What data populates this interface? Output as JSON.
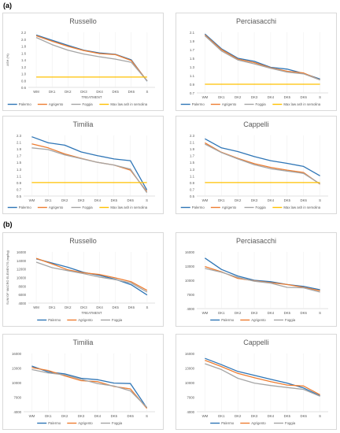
{
  "sections": [
    {
      "label": "(a)"
    },
    {
      "label": "(b)"
    }
  ],
  "colors": {
    "Palermo": "#2e75b6",
    "Agrigento": "#ed7d31",
    "Foggia": "#a5a5a5",
    "Max law ash in semolina": "#ffc000"
  },
  "chart_data": [
    {
      "type": "line",
      "title": "Russello",
      "xlabel": "TREATMENT",
      "ylabel": "ASH (%)",
      "categories": [
        "WM",
        "DK1",
        "DK2",
        "DK3",
        "DK4",
        "DK5",
        "DK6",
        "S"
      ],
      "yticks": [
        "0.6",
        "0.8",
        "1.0",
        "1.2",
        "1.4",
        "1.6",
        "1.8",
        "2.0",
        "2.2"
      ],
      "ylim": [
        0.6,
        2.2
      ],
      "series": [
        {
          "name": "Palermo",
          "values": [
            2.12,
            1.97,
            1.82,
            1.68,
            1.6,
            1.56,
            1.4,
            0.78
          ]
        },
        {
          "name": "Agrigento",
          "values": [
            2.1,
            1.94,
            1.79,
            1.67,
            1.58,
            1.55,
            1.38,
            0.79
          ]
        },
        {
          "name": "Foggia",
          "values": [
            2.05,
            1.84,
            1.68,
            1.57,
            1.49,
            1.42,
            1.33,
            0.79
          ]
        },
        {
          "name": "Max law ash in semolina",
          "values": [
            0.9,
            0.9,
            0.9,
            0.9,
            0.9,
            0.9,
            0.9,
            0.9
          ]
        }
      ],
      "legend": "bottom",
      "grid": false
    },
    {
      "type": "line",
      "title": "Perciasacchi",
      "xlabel": "",
      "ylabel": "",
      "categories": [
        "WM",
        "DK1",
        "DK2",
        "DK3",
        "DK4",
        "DK5",
        "DK6",
        "S"
      ],
      "yticks": [
        "0.7",
        "0.9",
        "1.1",
        "1.3",
        "1.5",
        "1.7",
        "1.9",
        "2.1"
      ],
      "ylim": [
        0.7,
        2.1
      ],
      "series": [
        {
          "name": "Palermo",
          "values": [
            2.06,
            1.72,
            1.5,
            1.43,
            1.29,
            1.25,
            1.15,
            1.02
          ]
        },
        {
          "name": "Agrigento",
          "values": [
            2.04,
            1.7,
            1.48,
            1.4,
            1.28,
            1.2,
            1.16,
            1.0
          ]
        },
        {
          "name": "Foggia",
          "values": [
            2.02,
            1.67,
            1.46,
            1.37,
            1.27,
            1.18,
            1.14,
            1.0
          ]
        },
        {
          "name": "Max law ash in semolina",
          "values": [
            0.9,
            0.9,
            0.9,
            0.9,
            0.9,
            0.9,
            0.9,
            0.9
          ]
        }
      ],
      "legend": "bottom",
      "grid": false
    },
    {
      "type": "line",
      "title": "Timilia",
      "xlabel": "",
      "ylabel": "",
      "categories": [
        "WM",
        "DK1",
        "DK2",
        "DK3",
        "DK4",
        "DK5",
        "DK6",
        "S"
      ],
      "yticks": [
        "0.5",
        "0.7",
        "0.9",
        "1.1",
        "1.3",
        "1.5",
        "1.7",
        "1.9",
        "2.1",
        "2.3"
      ],
      "ylim": [
        0.5,
        2.3
      ],
      "series": [
        {
          "name": "Palermo",
          "values": [
            2.26,
            2.08,
            2.01,
            1.81,
            1.7,
            1.6,
            1.55,
            0.68
          ]
        },
        {
          "name": "Agrigento",
          "values": [
            2.05,
            1.93,
            1.75,
            1.62,
            1.5,
            1.42,
            1.27,
            0.63
          ]
        },
        {
          "name": "Foggia",
          "values": [
            1.93,
            1.88,
            1.72,
            1.61,
            1.5,
            1.42,
            1.3,
            0.6
          ]
        },
        {
          "name": "Max law ash in semolina",
          "values": [
            0.9,
            0.9,
            0.9,
            0.9,
            0.9,
            0.9,
            0.9,
            0.9
          ]
        }
      ],
      "legend": "bottom",
      "grid": false
    },
    {
      "type": "line",
      "title": "Cappelli",
      "xlabel": "",
      "ylabel": "",
      "categories": [
        "WM",
        "DK1",
        "DK2",
        "DK3",
        "DK4",
        "DK5",
        "DK6",
        "S"
      ],
      "yticks": [
        "0.5",
        "0.7",
        "0.9",
        "1.1",
        "1.3",
        "1.5",
        "1.7",
        "1.9",
        "2.1",
        "2.3"
      ],
      "ylim": [
        0.5,
        2.3
      ],
      "series": [
        {
          "name": "Palermo",
          "values": [
            2.2,
            1.93,
            1.82,
            1.67,
            1.55,
            1.47,
            1.38,
            1.1
          ]
        },
        {
          "name": "Agrigento",
          "values": [
            2.08,
            1.8,
            1.62,
            1.46,
            1.35,
            1.27,
            1.2,
            0.85
          ]
        },
        {
          "name": "Foggia",
          "values": [
            2.04,
            1.79,
            1.6,
            1.43,
            1.31,
            1.24,
            1.17,
            0.86
          ]
        },
        {
          "name": "Max law ash in semolina",
          "values": [
            0.9,
            0.9,
            0.9,
            0.9,
            0.9,
            0.9,
            0.9,
            0.9
          ]
        }
      ],
      "legend": "bottom",
      "grid": false
    },
    {
      "type": "line",
      "title": "Russello",
      "xlabel": "TREATMENT",
      "ylabel": "SUM OF MACRO ELEMENTS (mg/kg)",
      "categories": [
        "WM",
        "DK1",
        "DK2",
        "DK3",
        "DK4",
        "DK5",
        "DK6",
        "S"
      ],
      "yticks": [
        "4000",
        "6000",
        "8000",
        "10000",
        "12000",
        "14000",
        "16000"
      ],
      "ylim": [
        4000,
        16000
      ],
      "series": [
        {
          "name": "Palermo",
          "values": [
            14400,
            13400,
            12400,
            11200,
            10500,
            9600,
            8300,
            5900
          ]
        },
        {
          "name": "Agrigento",
          "values": [
            14500,
            13200,
            11800,
            11100,
            10700,
            9900,
            9000,
            7000
          ]
        },
        {
          "name": "Foggia",
          "values": [
            13600,
            12300,
            11600,
            10900,
            10100,
            9500,
            8700,
            6600
          ]
        }
      ],
      "legend": "bottom",
      "grid": false
    },
    {
      "type": "line",
      "title": "Perciasacchi",
      "xlabel": "",
      "ylabel": "",
      "categories": [
        "WM",
        "DK1",
        "DK2",
        "DK3",
        "DK4",
        "DK5",
        "DK6",
        "S"
      ],
      "yticks": [
        "4000",
        "7000",
        "10000",
        "13000",
        "16000"
      ],
      "ylim": [
        4000,
        16000
      ],
      "series": [
        {
          "name": "Palermo",
          "values": [
            14700,
            12300,
            10900,
            10000,
            9700,
            9100,
            8700,
            8000
          ]
        },
        {
          "name": "Agrigento",
          "values": [
            12900,
            11800,
            10400,
            9900,
            9500,
            9100,
            8500,
            7800
          ]
        },
        {
          "name": "Foggia",
          "values": [
            12500,
            11700,
            10600,
            9800,
            9400,
            8500,
            8400,
            7500
          ]
        }
      ],
      "legend": "bottom",
      "grid": false
    },
    {
      "type": "line",
      "title": "Timilia",
      "xlabel": "",
      "ylabel": "",
      "categories": [
        "WM",
        "DK1",
        "DK2",
        "DK3",
        "DK4",
        "DK5",
        "DK6",
        "S"
      ],
      "yticks": [
        "4000",
        "7000",
        "10000",
        "13000",
        "16000"
      ],
      "ylim": [
        4000,
        16000
      ],
      "series": [
        {
          "name": "Palermo",
          "values": [
            13400,
            12200,
            11800,
            10900,
            10600,
            9900,
            9800,
            4800
          ]
        },
        {
          "name": "Agrigento",
          "values": [
            13100,
            12500,
            11400,
            10400,
            10200,
            9200,
            8700,
            4700
          ]
        },
        {
          "name": "Foggia",
          "values": [
            12700,
            12000,
            11600,
            10700,
            9800,
            9300,
            8300,
            4900
          ]
        }
      ],
      "legend": "bottom",
      "grid": false
    },
    {
      "type": "line",
      "title": "Cappelli",
      "xlabel": "",
      "ylabel": "",
      "categories": [
        "WM",
        "DK1",
        "DK2",
        "DK3",
        "DK4",
        "DK5",
        "DK6",
        "S"
      ],
      "yticks": [
        "4000",
        "7000",
        "10000",
        "13000",
        "16000"
      ],
      "ylim": [
        4000,
        16000
      ],
      "series": [
        {
          "name": "Palermo",
          "values": [
            15000,
            13700,
            12300,
            11500,
            10700,
            9900,
            8900,
            7300
          ]
        },
        {
          "name": "Agrigento",
          "values": [
            14600,
            13300,
            11900,
            11000,
            10200,
            9500,
            9300,
            7500
          ]
        },
        {
          "name": "Foggia",
          "values": [
            13900,
            12700,
            10900,
            9900,
            9400,
            9000,
            8600,
            7200
          ]
        }
      ],
      "legend": "bottom",
      "grid": false
    }
  ]
}
